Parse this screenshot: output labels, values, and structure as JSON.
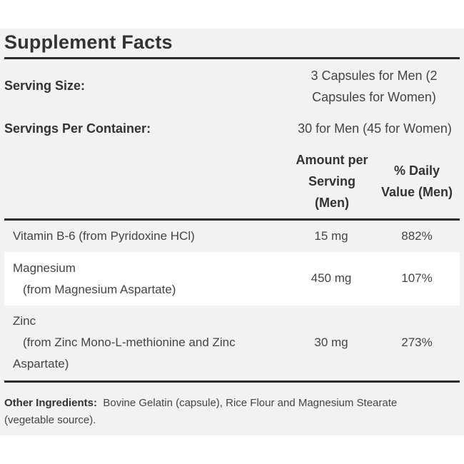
{
  "title": "Supplement Facts",
  "serving": {
    "size_label": "Serving Size:",
    "size_value_line1": "3 Capsules for Men (2",
    "size_value_line2": "Capsules for Women)",
    "per_container_label": "Servings Per Container:",
    "per_container_value": "30 for Men (45 for Women)"
  },
  "columns": {
    "amount_line1": "Amount per",
    "amount_line2": "Serving",
    "amount_line3": "(Men)",
    "dv_line1": "% Daily",
    "dv_line2": "Value (Men)"
  },
  "rows": [
    {
      "name_line1": "Vitamin B-6 (from Pyridoxine HCl)",
      "amount": "15 mg",
      "dv": "882%"
    },
    {
      "name_line1": "Magnesium",
      "name_line2": "(from Magnesium Aspartate)",
      "amount": "450 mg",
      "dv": "107%"
    },
    {
      "name_line1": "Zinc",
      "name_line2": "(from Zinc Mono-L-methionine and Zinc",
      "name_line3": "Aspartate)",
      "amount": "30 mg",
      "dv": "273%"
    }
  ],
  "other_ingredients": {
    "label": "Other Ingredients:",
    "text": "Bovine Gelatin (capsule), Rice Flour and Magnesium Stearate (vegetable source)."
  }
}
